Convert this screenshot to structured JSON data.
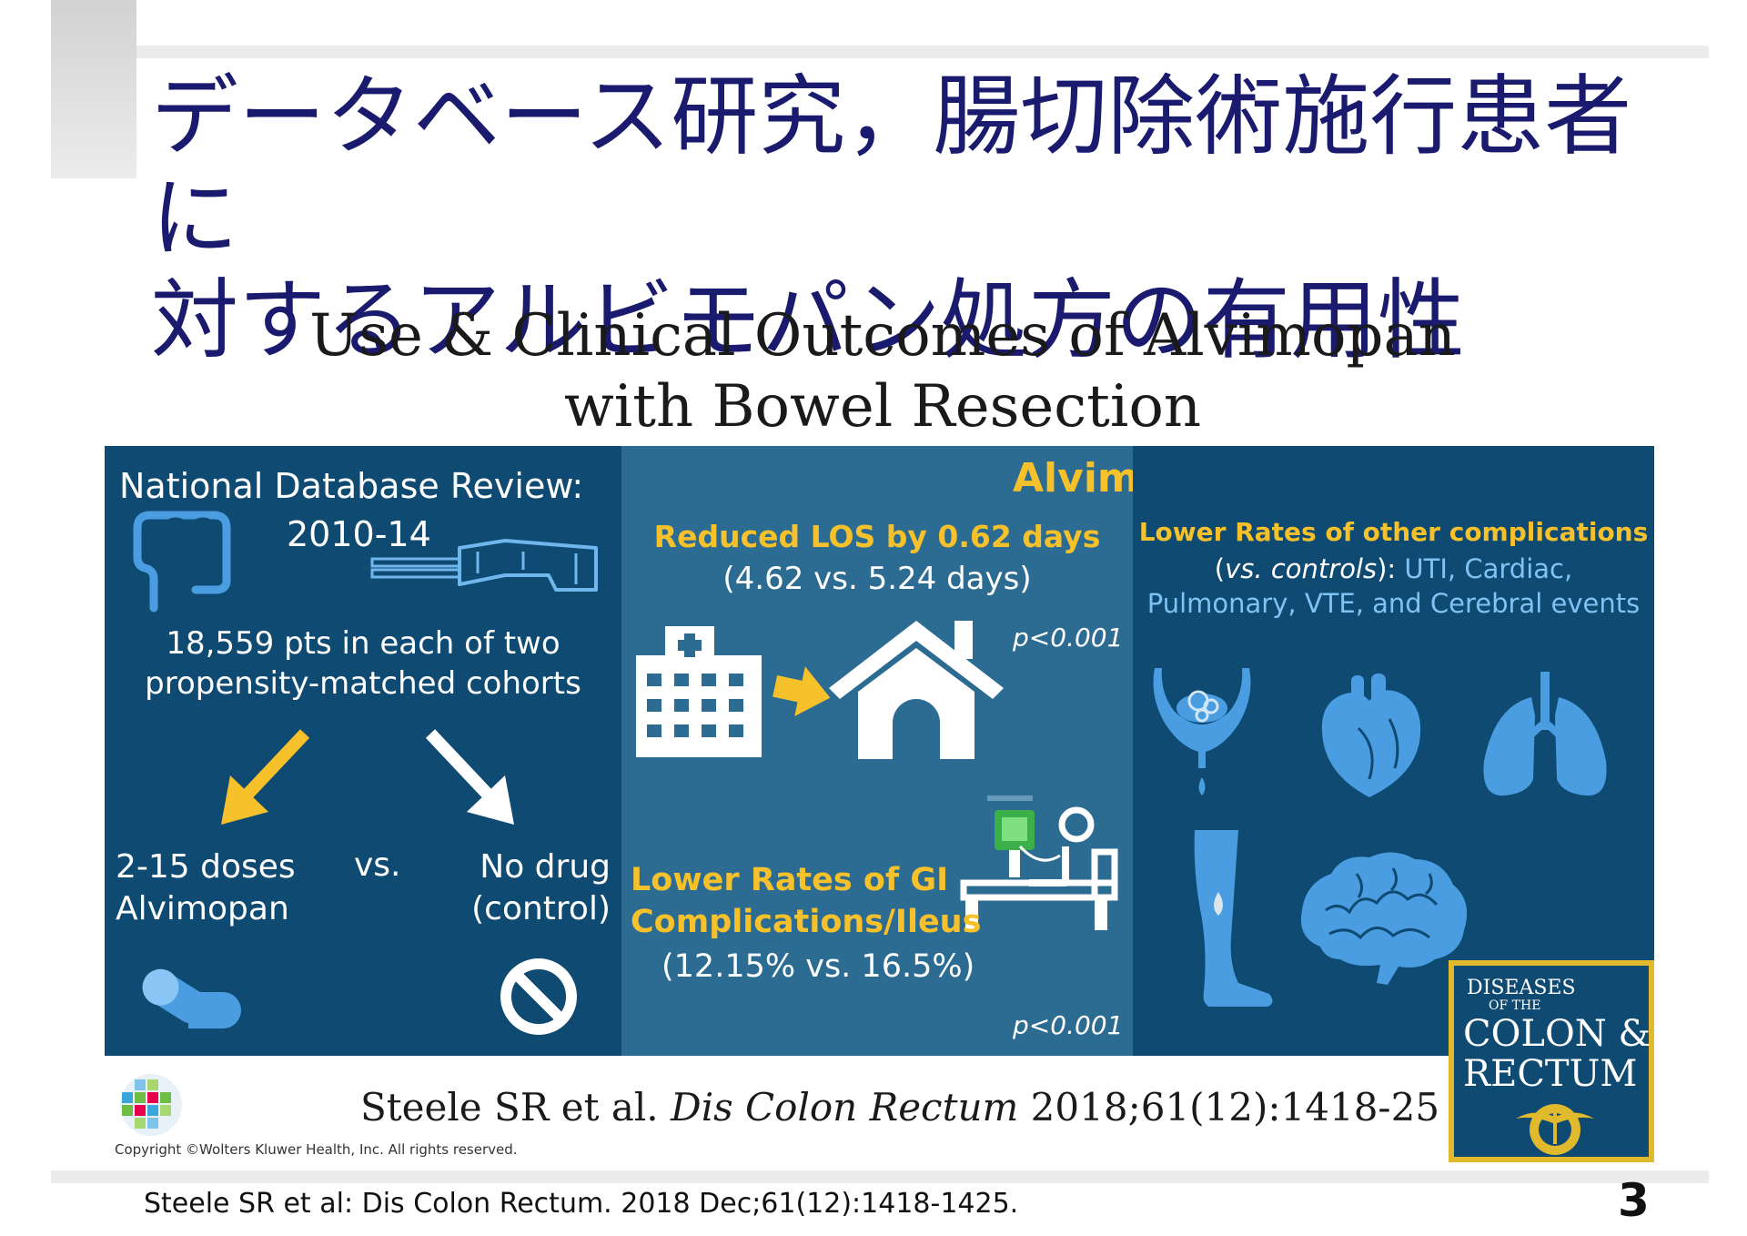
{
  "slide": {
    "title_line1": "データベース研究，腸切除術施行患者に",
    "title_line2": "対するアルビモパン処方の有用性",
    "page_number": "3",
    "footnote": "Steele SR et al: Dis Colon Rectum. 2018 Dec;61(12):1418-1425."
  },
  "abstract": {
    "title_line1": "Use & Clinical Outcomes of Alvimopan",
    "title_line2": "with Bowel Resection",
    "left": {
      "heading_line1": "National Database Review:",
      "heading_line2": "2010-14",
      "cohort_line1": "18,559 pts in each of two",
      "cohort_line2": "propensity-matched cohorts",
      "group_a_line1": "2-15 doses",
      "group_a_line2": "Alvimopan",
      "vs": "vs.",
      "group_b_line1": "No drug",
      "group_b_line2": "(control)"
    },
    "center": {
      "heading": "Alvimopan:",
      "los_label": "Reduced LOS by 0.62 days",
      "los_values": "(4.62 vs. 5.24 days)",
      "p_value_1": "p<0.001",
      "gi_label_line1": "Lower Rates of GI",
      "gi_label_line2": "Complications/Ileus",
      "gi_values": "(12.15% vs. 16.5%)",
      "p_value_2": "p<0.001"
    },
    "right": {
      "label": "Lower Rates of other complications",
      "vs_controls": "vs. controls",
      "open_paren": "(",
      "close_paren_colon": "):",
      "list_part1": "UTI, Cardiac,",
      "list_part2": "Pulmonary, VTE, and Cerebral events"
    },
    "journal": {
      "line1": "DISEASES",
      "line2": "OF THE",
      "line3": "COLON &",
      "line4": "RECTUM"
    },
    "citation_plain1": "Steele SR et al. ",
    "citation_italic": "Dis Colon Rectum",
    "citation_plain2": " 2018;61(12):1418-25",
    "copyright": "Copyright ©Wolters Kluwer Health, Inc. All rights reserved."
  },
  "colors": {
    "title_navy": "#1a1a6e",
    "panel_dark": "#0e4a72",
    "panel_mid": "#2c6c93",
    "accent_yellow": "#f6c12b",
    "organ_blue": "#4a9de0",
    "text_light_blue": "#7fc2f3"
  },
  "icons": [
    "colon-icon",
    "surgical-stapler-icon",
    "yellow-arrow-icon",
    "white-arrow-icon",
    "capsule-icon",
    "no-symbol-icon",
    "hospital-icon",
    "house-icon",
    "hospital-bed-patient-icon",
    "bladder-icon",
    "heart-icon",
    "lungs-icon",
    "leg-icon",
    "brain-icon",
    "wolters-kluwer-logo",
    "ascrs-seal"
  ]
}
